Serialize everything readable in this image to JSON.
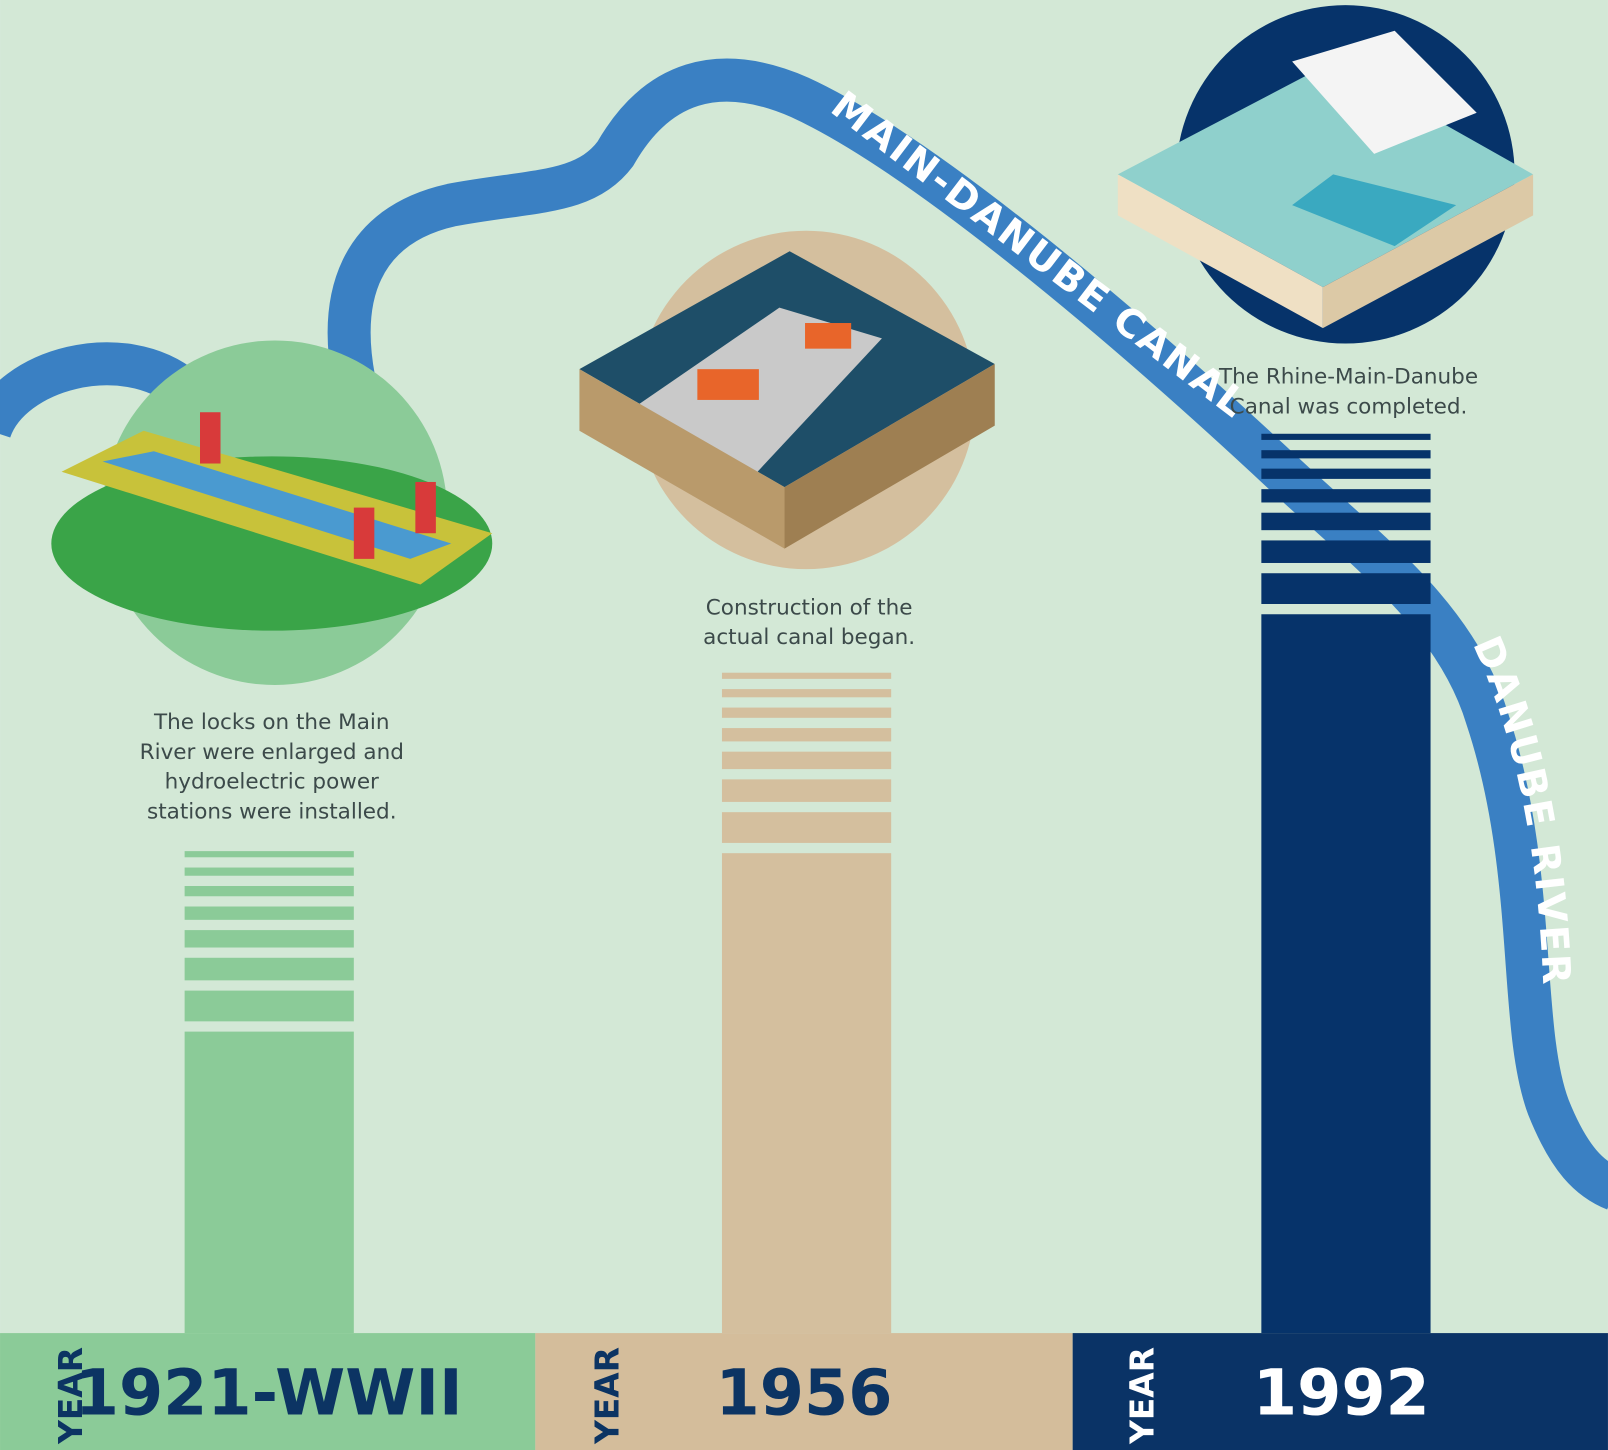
{
  "river_labels": [
    "MAIN-DANUBE CANAL",
    "DANUBE RIVER"
  ],
  "milestones": [
    {
      "caption_lines": [
        "The locks on the Main",
        "River were enlarged and",
        "hydroelectric power",
        "stations were installed."
      ],
      "year_label": "YEAR",
      "year": "1921-WWII"
    },
    {
      "caption_lines": [
        "Construction of the",
        "actual canal began."
      ],
      "year_label": "YEAR",
      "year": "1956"
    },
    {
      "caption_lines": [
        "The Rhine-Main-Danube",
        "Canal was completed."
      ],
      "year_label": "YEAR",
      "year": "1992"
    }
  ]
}
